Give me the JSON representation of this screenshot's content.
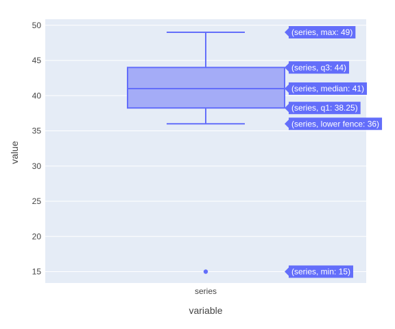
{
  "chart_data": {
    "type": "box",
    "xlabel": "variable",
    "ylabel": "value",
    "categories": [
      "series"
    ],
    "ylim": [
      13,
      51
    ],
    "yticks": [
      15,
      20,
      25,
      30,
      35,
      40,
      45,
      50
    ],
    "grid": true,
    "series": [
      {
        "name": "series",
        "min": 15,
        "lower_fence": 36,
        "q1": 38.25,
        "median": 41,
        "q3": 44,
        "max": 49,
        "outliers": [
          15
        ]
      }
    ],
    "hover_labels": [
      "(series, max: 49)",
      "(series, q3: 44)",
      "(series, median: 41)",
      "(series, q1: 38.25)",
      "(series, lower fence: 36)",
      "(series, min: 15)"
    ],
    "colors": {
      "plot_bg": "#e5ecf6",
      "box_fill": "#a4acf7",
      "box_line": "#636efa",
      "grid": "#ffffff",
      "label_bg": "#636efa"
    }
  }
}
